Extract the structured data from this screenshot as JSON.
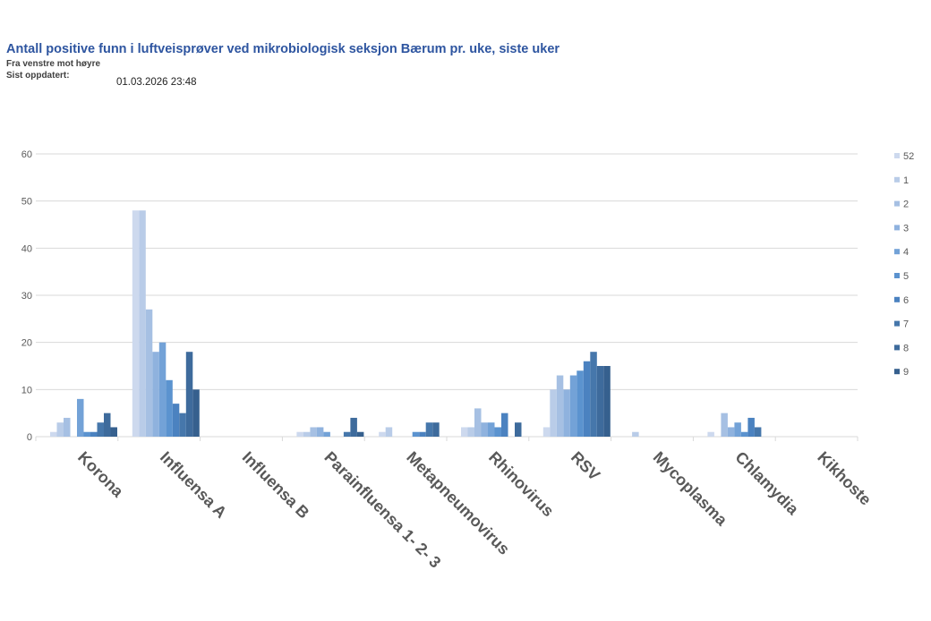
{
  "header": {
    "title": "Antall positive funn i luftveisprøver ved mikrobiologisk seksjon Bærum pr. uke, siste uker",
    "subtitle": "Fra venstre mot høyre",
    "updated_label": "Sist oppdatert:",
    "updated_value": "01.03.2026 23:48"
  },
  "chart_data": {
    "type": "bar",
    "title": "",
    "xlabel": "",
    "ylabel": "",
    "ylim": [
      0,
      60
    ],
    "yticks": [
      0,
      10,
      20,
      30,
      40,
      50,
      60
    ],
    "grid": true,
    "legend_position": "right",
    "categories": [
      "Korona",
      "Influensa A",
      "Influensa B",
      "Parainfluensa 1- 2- 3",
      "Metapneumovirus",
      "Rhinovirus",
      "RSV",
      "Mycoplasma",
      "Chlamydia",
      "Kikhoste"
    ],
    "series": [
      {
        "name": "52",
        "color": "#cdd9ee",
        "values": [
          1,
          48,
          0,
          1,
          1,
          2,
          2,
          0,
          1,
          0
        ]
      },
      {
        "name": "1",
        "color": "#b9cce8",
        "values": [
          3,
          48,
          0,
          1,
          2,
          2,
          10,
          1,
          0,
          0
        ]
      },
      {
        "name": "2",
        "color": "#a6c0e3",
        "values": [
          4,
          27,
          0,
          2,
          0,
          6,
          13,
          0,
          5,
          0
        ]
      },
      {
        "name": "3",
        "color": "#8fb2de",
        "values": [
          0,
          18,
          0,
          2,
          0,
          3,
          10,
          0,
          2,
          0
        ]
      },
      {
        "name": "4",
        "color": "#73a2d7",
        "values": [
          8,
          20,
          0,
          1,
          0,
          3,
          13,
          0,
          3,
          0
        ]
      },
      {
        "name": "5",
        "color": "#5b93cf",
        "values": [
          1,
          12,
          0,
          0,
          1,
          2,
          14,
          0,
          1,
          0
        ]
      },
      {
        "name": "6",
        "color": "#4b82c0",
        "values": [
          1,
          7,
          0,
          0,
          1,
          5,
          16,
          0,
          4,
          0
        ]
      },
      {
        "name": "7",
        "color": "#4677ab",
        "values": [
          3,
          5,
          0,
          1,
          3,
          0,
          18,
          0,
          2,
          0
        ]
      },
      {
        "name": "8",
        "color": "#3e6b9c",
        "values": [
          5,
          18,
          0,
          4,
          3,
          3,
          15,
          0,
          0,
          0
        ]
      },
      {
        "name": "9",
        "color": "#36608e",
        "values": [
          2,
          10,
          0,
          1,
          0,
          0,
          15,
          0,
          0,
          0
        ]
      }
    ]
  }
}
